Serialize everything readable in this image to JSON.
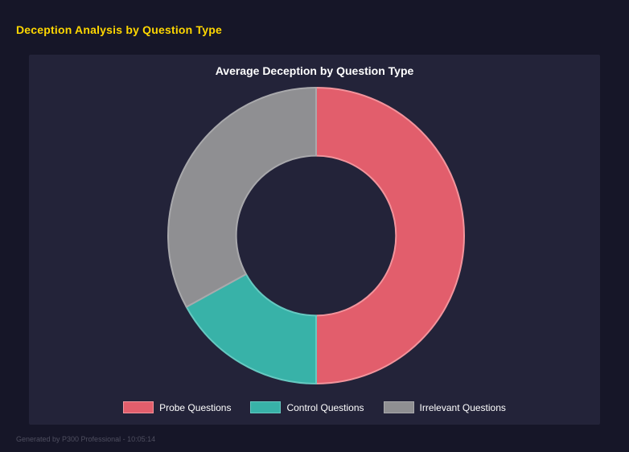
{
  "header": {
    "title": "Deception Analysis by Question Type"
  },
  "footer": {
    "text": "Generated by P300 Professional - 10:05:14"
  },
  "colors": {
    "page_background": "#161628",
    "panel_background": "#232339",
    "header_accent": "#ffd700",
    "title_text": "#ffffff",
    "footer_text": "#4f4f60"
  },
  "chart_data": {
    "type": "pie",
    "subtype": "donut",
    "title": "Average Deception by Question Type",
    "categories": [
      "Probe Questions",
      "Control Questions",
      "Irrelevant Questions"
    ],
    "values": [
      50,
      17,
      33
    ],
    "colors": [
      "#e25e6c",
      "#38b2a8",
      "#8f8f92"
    ],
    "border_colors": [
      "#f2949c",
      "#66c9c1",
      "#a9a9ac"
    ],
    "hole_ratio": 0.54,
    "start_angle_deg": 0,
    "direction": "clockwise",
    "legend_position": "bottom",
    "grid": false
  }
}
